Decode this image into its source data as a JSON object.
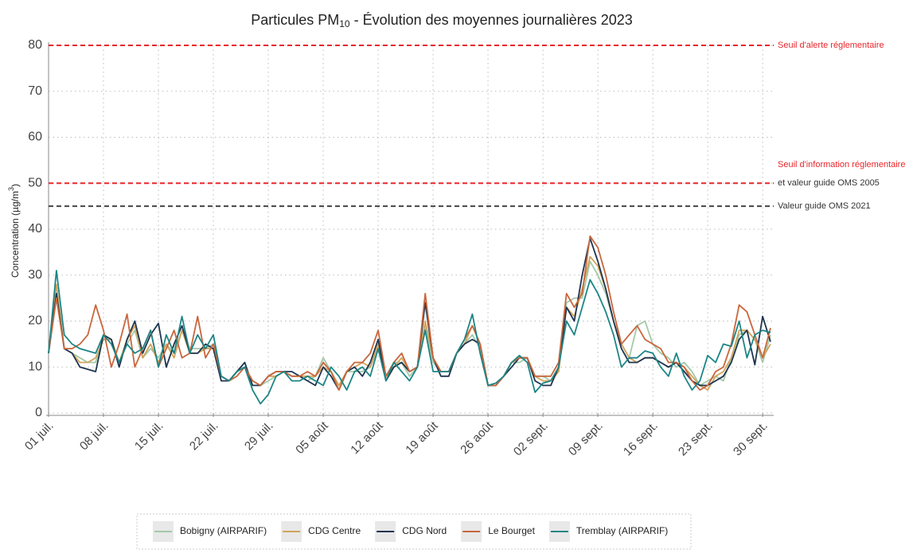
{
  "chart_data": {
    "type": "line",
    "title_parts": [
      "Particules PM",
      "10",
      " - Évolution des moyennes journalières 2023"
    ],
    "ylabel_parts": [
      "Concentration (µg/m",
      "3",
      ")"
    ],
    "categories": [
      "01 juil.",
      null,
      null,
      null,
      null,
      null,
      null,
      "08 juil.",
      null,
      null,
      null,
      null,
      null,
      null,
      "15 juil.",
      null,
      null,
      null,
      null,
      null,
      null,
      "22 juil.",
      null,
      null,
      null,
      null,
      null,
      null,
      "29 juil.",
      null,
      null,
      null,
      null,
      null,
      null,
      "05 août",
      null,
      null,
      null,
      null,
      null,
      null,
      "12 août",
      null,
      null,
      null,
      null,
      null,
      null,
      "19 août",
      null,
      null,
      null,
      null,
      null,
      null,
      "26 août",
      null,
      null,
      null,
      null,
      null,
      null,
      "02 sept.",
      null,
      null,
      null,
      null,
      null,
      null,
      "09 sept.",
      null,
      null,
      null,
      null,
      null,
      null,
      "16 sept.",
      null,
      null,
      null,
      null,
      null,
      null,
      "23 sept.",
      null,
      null,
      null,
      null,
      null,
      null,
      "30 sept.",
      null
    ],
    "ylim": [
      0,
      80
    ],
    "yticks": [
      0,
      10,
      20,
      30,
      40,
      50,
      60,
      70,
      80
    ],
    "grid": true,
    "reference_lines": [
      {
        "value": 80,
        "color": "#e8262b",
        "labels": [
          {
            "text": "Seuil d'alerte réglementaire",
            "color": "#e8262b"
          }
        ]
      },
      {
        "value": 50,
        "color": "#e8262b",
        "labels": [
          {
            "text": "Seuil d'information réglementaire",
            "color": "#e8262b"
          },
          {
            "text": "et valeur guide OMS 2005",
            "color": "#333333"
          }
        ]
      },
      {
        "value": 45,
        "color": "#444444",
        "labels": [
          {
            "text": "Valeur guide OMS 2021",
            "color": "#333333"
          }
        ]
      }
    ],
    "series": [
      {
        "name": "Bobigny (AIRPARIF)",
        "color": "#a3c9a8",
        "values": [
          13,
          26,
          14,
          13,
          12,
          11,
          11,
          17,
          16,
          11,
          15,
          18,
          12,
          14,
          12,
          15,
          13,
          18,
          14,
          14,
          14,
          15,
          8,
          7,
          9,
          10,
          7,
          6,
          7,
          8,
          9,
          8,
          8,
          7,
          8,
          12,
          9,
          6,
          9,
          9,
          9,
          10,
          14,
          7,
          11,
          11,
          8,
          10,
          19,
          11,
          9,
          9,
          13,
          15,
          17,
          14,
          6,
          6,
          8,
          11,
          11,
          12,
          8,
          8,
          7,
          9,
          24,
          25,
          25,
          33,
          30,
          26,
          20,
          15,
          12,
          19,
          20,
          15,
          13,
          12,
          10,
          11,
          9,
          6,
          7,
          8,
          7,
          12,
          17,
          18,
          16,
          11,
          17
        ]
      },
      {
        "name": "CDG Centre",
        "color": "#d2a45c",
        "values": [
          13,
          28,
          14,
          13,
          11,
          11,
          12,
          16,
          16,
          11,
          16,
          19,
          12,
          15,
          11,
          15,
          12,
          18,
          13,
          13,
          14,
          14,
          8,
          7,
          9,
          10,
          7,
          6,
          8,
          8,
          9,
          8,
          8,
          8,
          8,
          10,
          9,
          6,
          9,
          10,
          11,
          10,
          15,
          8,
          10,
          12,
          9,
          10,
          20,
          12,
          9,
          9,
          13,
          15,
          19,
          15,
          6,
          6,
          8,
          11,
          12,
          12,
          8,
          7,
          7,
          9,
          23,
          21,
          27,
          34,
          32,
          27,
          20,
          15,
          12,
          11,
          12,
          12,
          11,
          10,
          11,
          10,
          8,
          6,
          5,
          8,
          9,
          12,
          18,
          18,
          16,
          12,
          15
        ]
      },
      {
        "name": "CDG Nord",
        "color": "#1e3550",
        "values": [
          13,
          26,
          14,
          13,
          10,
          9.5,
          9,
          17,
          16,
          10,
          16,
          20,
          13,
          17,
          19.5,
          10,
          15,
          19,
          13,
          13,
          15,
          14,
          7,
          7,
          9,
          11,
          6,
          6,
          8,
          9,
          9,
          9,
          8,
          7,
          6,
          10,
          8,
          5,
          9,
          10,
          8,
          11,
          16,
          7,
          10,
          11,
          9,
          10,
          24,
          12,
          8,
          8,
          13,
          15,
          16,
          15,
          6,
          6,
          8,
          10,
          12,
          12,
          7,
          6,
          6,
          10,
          23,
          20,
          30,
          38,
          33,
          27,
          20,
          14,
          11,
          11,
          12,
          12,
          11,
          10,
          11,
          9,
          7,
          6,
          6,
          7,
          8,
          11,
          16,
          18,
          10.5,
          21,
          15.5
        ]
      },
      {
        "name": "Le Bourget",
        "color": "#c9663d",
        "values": [
          13,
          25,
          14,
          14,
          15,
          17,
          23.5,
          18,
          10,
          15,
          21.5,
          10,
          14,
          18,
          10,
          14,
          18,
          12,
          13,
          21,
          12,
          15,
          8,
          7,
          8,
          10,
          7,
          6,
          8,
          9,
          9,
          8,
          8,
          9,
          8,
          11,
          9,
          5,
          9,
          11,
          11,
          13,
          18,
          8,
          11,
          13,
          9,
          10,
          26,
          12,
          9,
          9,
          13,
          16,
          19,
          15,
          6,
          6,
          8,
          11,
          12,
          12,
          8,
          8,
          8,
          11,
          26,
          23,
          26,
          38.5,
          36,
          30,
          22,
          15,
          17,
          19,
          16,
          15,
          14,
          11,
          11,
          10,
          7,
          5,
          6,
          9,
          10,
          15,
          23.5,
          22,
          17,
          12,
          18.5
        ]
      },
      {
        "name": "Tremblay (AIRPARIF)",
        "color": "#1d8585",
        "values": [
          13,
          31,
          17,
          15,
          14,
          13.5,
          13,
          17,
          15,
          11,
          15,
          13,
          14,
          18,
          10,
          17,
          13,
          21,
          13,
          17,
          14,
          17,
          8,
          7,
          9,
          10,
          5,
          2,
          4,
          8,
          9,
          7,
          7,
          8,
          7,
          6,
          10,
          8,
          5,
          9,
          10,
          8,
          14,
          7,
          11,
          9,
          7,
          10,
          18,
          9,
          9,
          9,
          13,
          16,
          21.5,
          13,
          6,
          6.5,
          8,
          11,
          12.5,
          11,
          4.5,
          6.5,
          7,
          10,
          20,
          17,
          23,
          29,
          26,
          22,
          17,
          10,
          12,
          12,
          13.5,
          13,
          10,
          8,
          13,
          8,
          5,
          7,
          12.5,
          11,
          15,
          14.5,
          20,
          12,
          17,
          18,
          17.5
        ]
      }
    ]
  }
}
